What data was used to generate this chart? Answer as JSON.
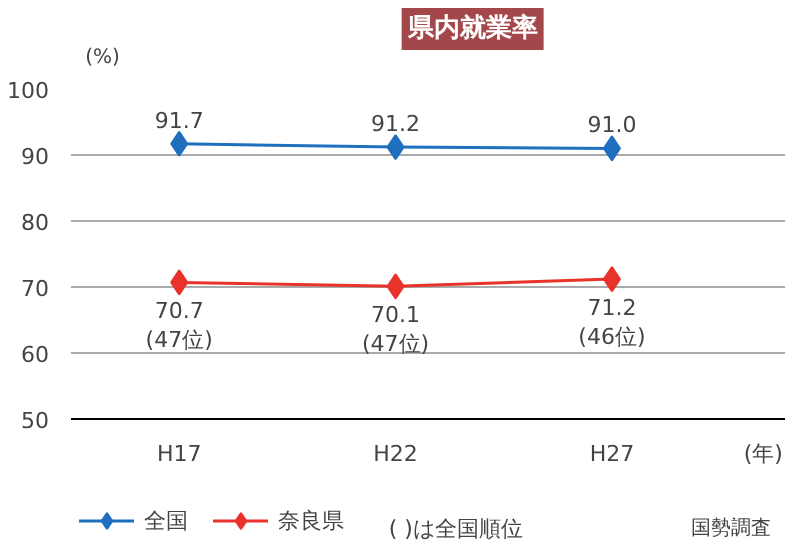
{
  "chart_data": {
    "type": "line",
    "title": "県内就業率",
    "ylabel": "(%)",
    "xlabel": "(年)",
    "categories": [
      "H17",
      "H22",
      "H27"
    ],
    "series": [
      {
        "name": "全国",
        "color": "#1f6fbf",
        "values": [
          91.7,
          91.2,
          91.0
        ],
        "value_labels": [
          "91.7",
          "91.2",
          "91.0"
        ]
      },
      {
        "name": "奈良県",
        "color": "#e8322a",
        "values": [
          70.7,
          70.1,
          71.2
        ],
        "value_labels": [
          "70.7\n(47位)",
          "70.1\n(47位)",
          "71.2\n(46位)"
        ]
      }
    ],
    "ylim": [
      50,
      100
    ],
    "yticks": [
      50,
      60,
      70,
      80,
      90,
      100
    ],
    "grid": "y",
    "legend": "bottom",
    "marker": "diamond",
    "line_style": "solid",
    "annotations": [
      "(  )は全国順位",
      "国勢調査"
    ]
  }
}
